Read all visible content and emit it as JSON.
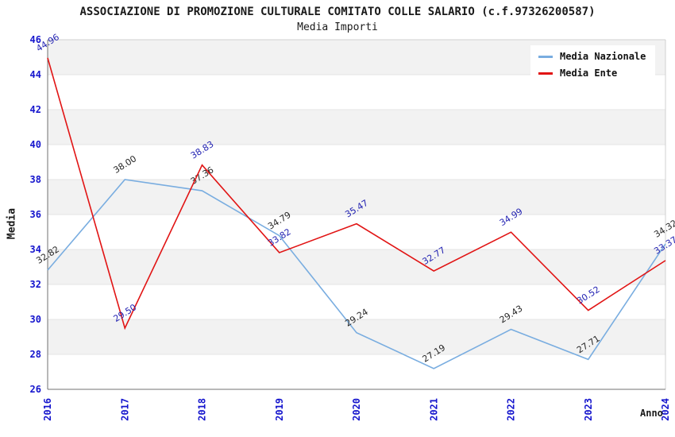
{
  "chart_data": {
    "type": "line",
    "title": "ASSOCIAZIONE DI PROMOZIONE CULTURALE COMITATO COLLE SALARIO (c.f.97326200587)",
    "subtitle": "Media Importi",
    "xlabel": "Anno",
    "ylabel": "Media",
    "categories": [
      2016,
      2017,
      2018,
      2019,
      2020,
      2021,
      2022,
      2023,
      2024
    ],
    "series": [
      {
        "name": "Media Nazionale",
        "color": "#79ade0",
        "label_color": "#262626",
        "values": [
          32.82,
          38.0,
          37.36,
          34.79,
          29.24,
          27.19,
          29.43,
          27.71,
          34.32
        ]
      },
      {
        "name": "Media Ente",
        "color": "#e11414",
        "label_color": "#2222b2",
        "values": [
          44.96,
          29.5,
          38.83,
          33.82,
          35.47,
          32.77,
          34.99,
          30.52,
          33.37
        ]
      }
    ],
    "ylim": [
      26,
      46
    ],
    "ytick_step": 2,
    "grid": true,
    "legend_position": "top-right",
    "colors": {
      "tick_label": "#1515cd",
      "band": "#f2f2f2",
      "gridline": "#e4e4e4",
      "frame": "#d0d0d0",
      "axis": "#707070"
    }
  }
}
